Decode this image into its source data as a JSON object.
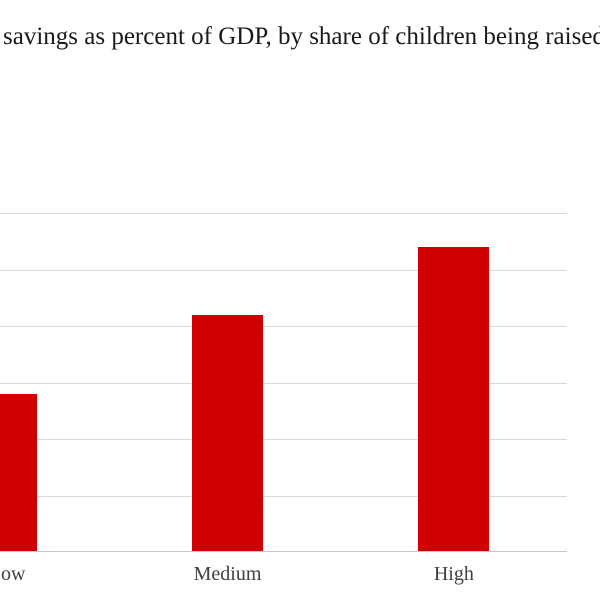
{
  "chart_data": {
    "type": "bar",
    "title": "savings as percent of GDP, by share of children being raised",
    "categories": [
      "Low",
      "Medium",
      "High"
    ],
    "values": [
      2.8,
      4.2,
      5.4
    ],
    "xlabel": "",
    "ylabel": "",
    "ylim": [
      0,
      6
    ],
    "grid": true,
    "gridline_step": 1,
    "legend": "none",
    "y_axis_labels_visible": false,
    "layout_hints": "chart cropped at left edge: y-axis labels not visible, first bar and its label partially cut off; title clipped at right edge"
  },
  "colors": {
    "bar": "#d00000",
    "gridline": "#d9d9d9",
    "axis_line": "#c8c8c8",
    "title_text": "#1a1a1a",
    "category_label_text": "#404040",
    "background": "#ffffff"
  }
}
